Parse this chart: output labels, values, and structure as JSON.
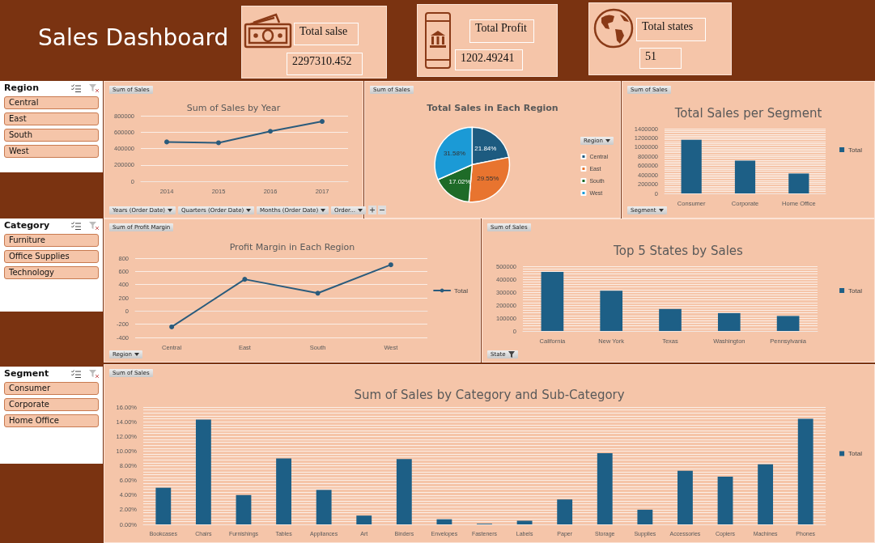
{
  "chart_data": [
    {
      "type": "other",
      "title": "Sales Dashboard",
      "annotations": [
        "Total salse",
        "2297310.452",
        "Total Profit",
        "1202.49241",
        "Total states",
        "51"
      ]
    },
    {
      "type": "other",
      "title": "Region",
      "annotations": [
        "Central",
        "East",
        "South",
        "West"
      ]
    },
    {
      "type": "other",
      "title": "Category",
      "annotations": [
        "Furniture",
        "Office Supplies",
        "Technology"
      ]
    },
    {
      "type": "other",
      "title": "Segment",
      "annotations": [
        "Consumer",
        "Corporate",
        "Home Office"
      ]
    },
    {
      "type": "line",
      "title": "Sum of Sales by Year",
      "categories": [
        "2014",
        "2015",
        "2016",
        "2017"
      ],
      "values": [
        480000,
        470000,
        610000,
        730000
      ],
      "color": "#2a5b7c",
      "ylim": [
        0,
        800000
      ],
      "yticks": [
        0,
        200000,
        400000,
        600000,
        800000
      ],
      "grid": "y",
      "marker": "circle",
      "annotations": [
        "Sum of Sales",
        "Years (Order Date)",
        "Quarters (Order Date)",
        "Months (Order Date)",
        "Order..."
      ]
    },
    {
      "type": "pie",
      "title": "Total Sales in Each Region",
      "categories": [
        "Central",
        "East",
        "South",
        "West"
      ],
      "values": [
        21.84,
        29.55,
        17.02,
        31.58
      ],
      "colors": [
        "#1d5b80",
        "#e8742f",
        "#1e6b28",
        "#1b9ad6"
      ],
      "value_labels": [
        "21.84%",
        "29.55%",
        "17.02%",
        "31.58%"
      ],
      "legend": "right",
      "legend_title": "Region",
      "annotations": [
        "Sum of Sales"
      ]
    },
    {
      "type": "bar",
      "title": "Total Sales per Segment",
      "categories": [
        "Consumer",
        "Corporate",
        "Home Office"
      ],
      "series": [
        {
          "name": "Total",
          "color": "#1d5f86",
          "values": [
            1160000,
            710000,
            430000
          ]
        }
      ],
      "ylim": [
        0,
        1400000
      ],
      "yticks": [
        0,
        200000,
        400000,
        600000,
        800000,
        1000000,
        1200000,
        1400000
      ],
      "grid": "y",
      "legend": "right",
      "annotations": [
        "Sum of Sales",
        "Segment"
      ]
    },
    {
      "type": "line",
      "title": "Profit Margin in Each Region",
      "categories": [
        "Central",
        "East",
        "South",
        "West"
      ],
      "series": [
        {
          "name": "Total",
          "color": "#2a5b7c",
          "values": [
            -240,
            480,
            270,
            700
          ]
        }
      ],
      "ylim": [
        -400,
        800
      ],
      "yticks": [
        -400,
        -200,
        0,
        200,
        400,
        600,
        800
      ],
      "grid": "y",
      "marker": "circle",
      "legend": "right",
      "annotations": [
        "Sum of Profit Margin",
        "Region"
      ]
    },
    {
      "type": "bar",
      "title": "Top 5 States by Sales",
      "categories": [
        "California",
        "New York",
        "Texas",
        "Washington",
        "Pennsylvania"
      ],
      "series": [
        {
          "name": "Total",
          "color": "#1d5f86",
          "values": [
            457000,
            311000,
            170000,
            138000,
            116000
          ]
        }
      ],
      "ylim": [
        0,
        500000
      ],
      "yticks": [
        0,
        100000,
        200000,
        300000,
        400000,
        500000
      ],
      "grid": "y",
      "legend": "right",
      "annotations": [
        "Sum of Sales",
        "State"
      ]
    },
    {
      "type": "bar",
      "title": "Sum of Sales by Category and Sub-Category",
      "categories": [
        "Bookcases",
        "Chairs",
        "Furnishings",
        "Tables",
        "Appliances",
        "Art",
        "Binders",
        "Envelopes",
        "Fasteners",
        "Labels",
        "Paper",
        "Storage",
        "Supplies",
        "Accessories",
        "Copiers",
        "Machines",
        "Phones"
      ],
      "series": [
        {
          "name": "Total",
          "color": "#1d5f86",
          "values": [
            5.0,
            14.3,
            4.0,
            9.0,
            4.7,
            1.2,
            8.9,
            0.7,
            0.1,
            0.5,
            3.4,
            9.7,
            2.0,
            7.3,
            6.5,
            8.2,
            14.4
          ]
        }
      ],
      "ylim": [
        0,
        16
      ],
      "yticks": [
        {
          "value": 0,
          "label": "0.00%"
        },
        {
          "value": 2,
          "label": "2.00%"
        },
        {
          "value": 4,
          "label": "4.00%"
        },
        {
          "value": 6,
          "label": "6.00%"
        },
        {
          "value": 8,
          "label": "8.00%"
        },
        {
          "value": 10,
          "label": "10.00%"
        },
        {
          "value": 12,
          "label": "12.00%"
        },
        {
          "value": 14,
          "label": "14.00%"
        },
        {
          "value": 16,
          "label": "16.00%"
        }
      ],
      "grid": "y",
      "legend": "right",
      "annotations": [
        "Sum of Sales"
      ]
    }
  ]
}
